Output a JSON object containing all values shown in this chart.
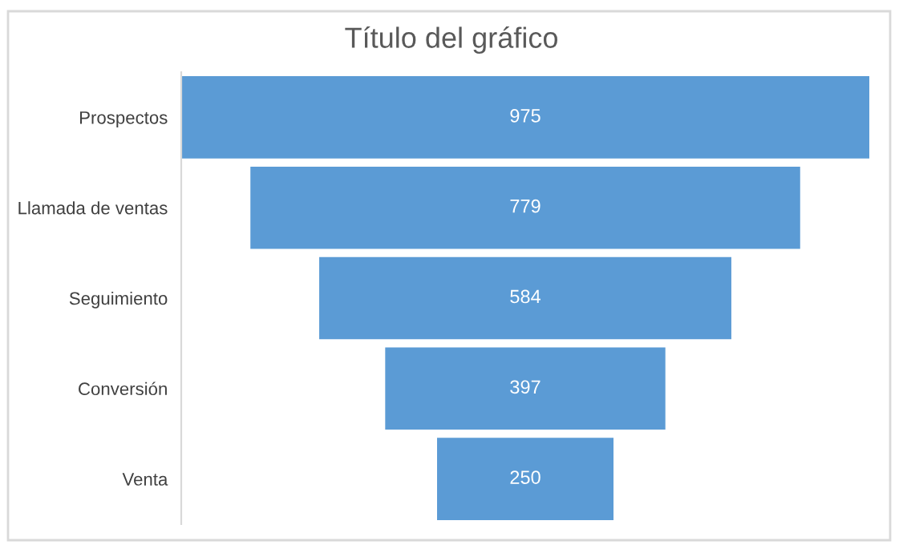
{
  "chart_data": {
    "type": "other",
    "title": "Título del gráfico",
    "categories": [
      "Prospectos",
      "Llamada de ventas",
      "Seguimiento",
      "Conversión",
      "Venta"
    ],
    "values": [
      975,
      779,
      584,
      397,
      250
    ],
    "color": "#5b9bd5",
    "data_labels": true
  }
}
